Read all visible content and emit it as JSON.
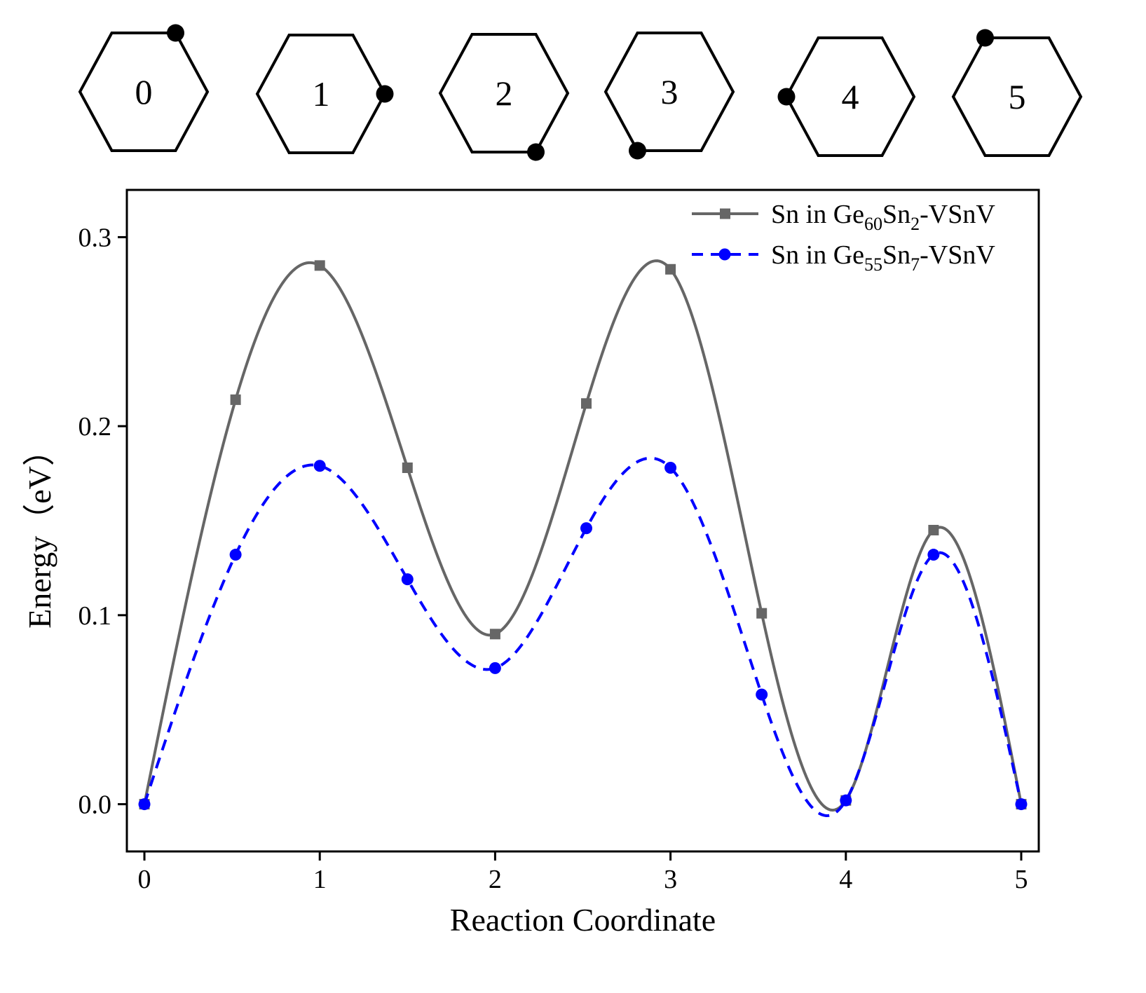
{
  "schematic": {
    "hexagons": [
      {
        "label": "0",
        "dot_vertex": "upper-right"
      },
      {
        "label": "1",
        "dot_vertex": "right"
      },
      {
        "label": "2",
        "dot_vertex": "lower-right"
      },
      {
        "label": "3",
        "dot_vertex": "lower-left"
      },
      {
        "label": "4",
        "dot_vertex": "left"
      },
      {
        "label": "5",
        "dot_vertex": "upper-left"
      }
    ],
    "stroke_color": "#000000",
    "dot_color": "#000000"
  },
  "chart_data": {
    "type": "line",
    "title": "",
    "xlabel": "Reaction Coordinate",
    "ylabel": "Energy（eV）",
    "xlim": [
      -0.1,
      5.1
    ],
    "ylim": [
      -0.025,
      0.325
    ],
    "xticks": [
      0,
      1,
      2,
      3,
      4,
      5
    ],
    "xtick_labels": [
      "0",
      "1",
      "2",
      "3",
      "4",
      "5"
    ],
    "yticks": [
      0.0,
      0.1,
      0.2,
      0.3
    ],
    "ytick_labels": [
      "0.0",
      "0.1",
      "0.2",
      "0.3"
    ],
    "grid": false,
    "legend_position": "top-right",
    "series": [
      {
        "name_parts": {
          "base": "Sn in Ge",
          "sub1": "60",
          "mid": "Sn",
          "sub2": "2",
          "tail": "-VSnV"
        },
        "color": "#666666",
        "line_style": "solid",
        "marker": "square",
        "x": [
          0,
          0.52,
          1,
          1.5,
          2,
          2.52,
          3,
          3.52,
          4,
          4.5,
          5
        ],
        "y": [
          0.0,
          0.214,
          0.285,
          0.178,
          0.09,
          0.212,
          0.283,
          0.101,
          0.002,
          0.145,
          0.0
        ]
      },
      {
        "name_parts": {
          "base": "Sn in Ge",
          "sub1": "55",
          "mid": "Sn",
          "sub2": "7",
          "tail": "-VSnV"
        },
        "color": "#0000ff",
        "line_style": "dashed",
        "marker": "circle",
        "x": [
          0,
          0.52,
          1,
          1.5,
          2,
          2.52,
          3,
          3.52,
          4,
          4.5,
          5
        ],
        "y": [
          0.0,
          0.132,
          0.179,
          0.119,
          0.072,
          0.146,
          0.178,
          0.058,
          0.002,
          0.132,
          0.0
        ]
      }
    ]
  }
}
